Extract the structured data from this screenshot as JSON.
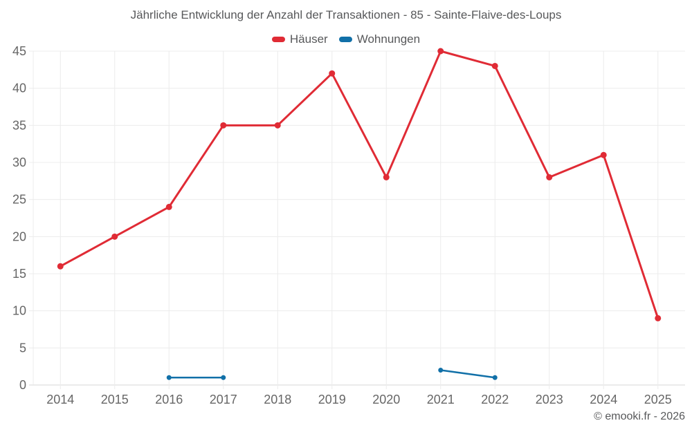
{
  "title": "Jährliche Entwicklung der Anzahl der Transaktionen - 85 - Sainte-Flaive-des-Loups",
  "copyright": "© emooki.fr - 2026",
  "colors": {
    "background": "#ffffff",
    "grid": "#ececec",
    "axis": "#d6d6d6",
    "tick_text": "#666666",
    "title_text": "#57585a",
    "hauser_red": "#e02b35",
    "wohnungen_blue": "#1170a8"
  },
  "chart_data": {
    "type": "line",
    "title": "Jährliche Entwicklung der Anzahl der Transaktionen - 85 - Sainte-Flaive-des-Loups",
    "categories": [
      "2014",
      "2015",
      "2016",
      "2017",
      "2018",
      "2019",
      "2020",
      "2021",
      "2022",
      "2023",
      "2024",
      "2025"
    ],
    "series": [
      {
        "name": "Häuser",
        "color": "#e02b35",
        "line_width": 3,
        "point_radius": 4.5,
        "values": [
          16,
          20,
          24,
          35,
          35,
          42,
          28,
          45,
          43,
          28,
          31,
          9
        ]
      },
      {
        "name": "Wohnungen",
        "color": "#1170a8",
        "line_width": 2.5,
        "point_radius": 3.5,
        "values": [
          null,
          null,
          1,
          1,
          null,
          null,
          null,
          2,
          1,
          null,
          null,
          null
        ]
      }
    ],
    "xlabel": "",
    "ylabel": "",
    "ylim": [
      0,
      45
    ],
    "ytick_step": 5,
    "grid": true,
    "legend_position": "top"
  }
}
